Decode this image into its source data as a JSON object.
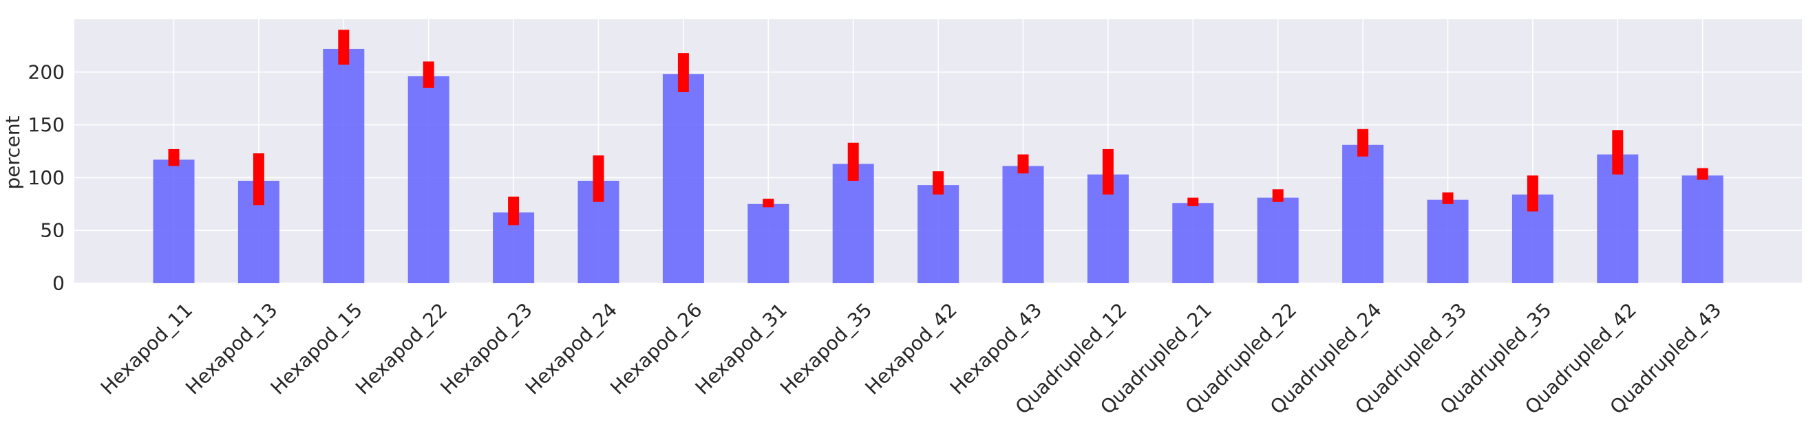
{
  "chart_data": {
    "type": "bar",
    "title": "",
    "xlabel": "",
    "ylabel": "percent",
    "ylim": [
      0,
      250
    ],
    "yticks": [
      0,
      50,
      100,
      150,
      200
    ],
    "grid": true,
    "legend": "none",
    "categories": [
      "Hexapod_11",
      "Hexapod_13",
      "Hexapod_15",
      "Hexapod_22",
      "Hexapod_23",
      "Hexapod_24",
      "Hexapod_26",
      "Hexapod_31",
      "Hexapod_35",
      "Hexapod_42",
      "Hexapod_43",
      "Quadrupled_12",
      "Quadrupled_21",
      "Quadrupled_22",
      "Quadrupled_24",
      "Quadrupled_33",
      "Quadrupled_35",
      "Quadrupled_42",
      "Quadrupled_43"
    ],
    "values": [
      117,
      97,
      222,
      196,
      67,
      97,
      198,
      75,
      113,
      93,
      111,
      103,
      76,
      81,
      131,
      79,
      84,
      122,
      102
    ],
    "error_low": [
      111,
      74,
      207,
      185,
      55,
      77,
      181,
      72,
      97,
      84,
      104,
      84,
      73,
      77,
      120,
      75,
      68,
      103,
      98
    ],
    "error_high": [
      127,
      123,
      240,
      210,
      82,
      121,
      218,
      80,
      133,
      106,
      122,
      127,
      81,
      89,
      146,
      86,
      102,
      145,
      109
    ],
    "colors": {
      "bar": "#6666ff",
      "error": "#ff0000",
      "plot_background": "#eaeaf2",
      "grid": "#ffffff",
      "text": "#262626"
    }
  }
}
